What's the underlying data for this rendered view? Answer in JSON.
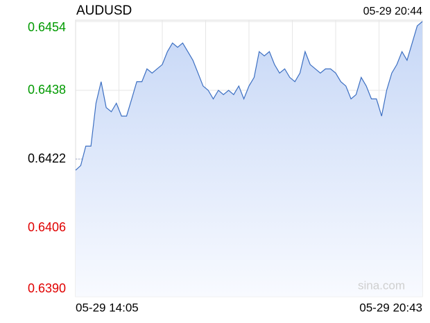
{
  "chart_data": {
    "type": "line",
    "title": "AUDUSD",
    "timestamp": "05-29 20:44",
    "watermark": "sina.com",
    "categories": [
      "05-29 14:05",
      null,
      null,
      null,
      null,
      null,
      null,
      null,
      null,
      null,
      null,
      null,
      null,
      null,
      null,
      null,
      null,
      null,
      null,
      null,
      null,
      null,
      null,
      null,
      null,
      null,
      null,
      null,
      null,
      null,
      null,
      null,
      null,
      null,
      null,
      null,
      null,
      null,
      null,
      null,
      null,
      null,
      null,
      null,
      null,
      null,
      null,
      null,
      null,
      null,
      null,
      null,
      null,
      null,
      null,
      null,
      null,
      null,
      null,
      null,
      null,
      null,
      null,
      null,
      null,
      null,
      null,
      null,
      "05-29 20:43"
    ],
    "series": [
      {
        "name": "AUDUSD",
        "color": "#3c6fc2",
        "values": [
          0.64194,
          0.64205,
          0.6425,
          0.6425,
          0.6435,
          0.644,
          0.6434,
          0.6433,
          0.6435,
          0.6432,
          0.6432,
          0.6436,
          0.644,
          0.644,
          0.6443,
          0.6442,
          0.6443,
          0.6444,
          0.6447,
          0.6449,
          0.6448,
          0.6449,
          0.6447,
          0.6445,
          0.6442,
          0.6439,
          0.6438,
          0.6436,
          0.6438,
          0.6437,
          0.6438,
          0.6437,
          0.6439,
          0.6436,
          0.6439,
          0.6441,
          0.6447,
          0.6446,
          0.6447,
          0.6444,
          0.6442,
          0.6443,
          0.6441,
          0.644,
          0.6442,
          0.6447,
          0.6444,
          0.6443,
          0.6442,
          0.6443,
          0.6443,
          0.6442,
          0.644,
          0.6439,
          0.6436,
          0.6437,
          0.6441,
          0.6439,
          0.6436,
          0.6436,
          0.6432,
          0.6438,
          0.6442,
          0.6444,
          0.6447,
          0.6445,
          0.6449,
          0.6453,
          0.6454
        ]
      }
    ],
    "ylim": [
      0.639,
      0.6454
    ],
    "yticks": [
      {
        "value": 0.6454,
        "label": "0.6454"
      },
      {
        "value": 0.6438,
        "label": "0.6438"
      },
      {
        "value": 0.6422,
        "label": "0.6422"
      },
      {
        "value": 0.6406,
        "label": "0.6406"
      },
      {
        "value": 0.639,
        "label": "0.6390"
      }
    ],
    "reference": 0.6422,
    "up_color": "#009a00",
    "down_color": "#e00000",
    "flat_color": "#000000",
    "vertical_grid_divisions": 8,
    "grid": true
  }
}
